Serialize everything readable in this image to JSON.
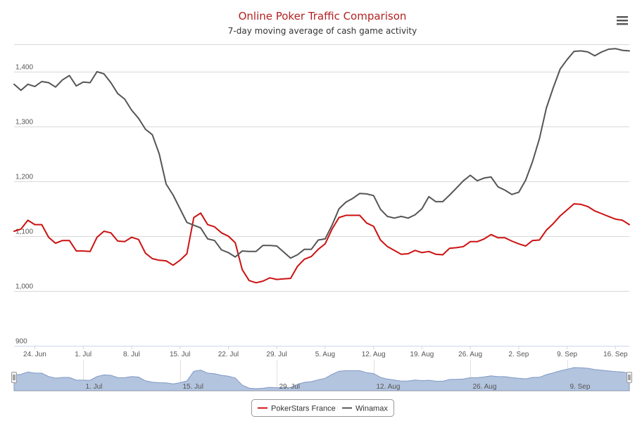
{
  "chart_data": {
    "type": "line",
    "title": "Online Poker Traffic Comparison",
    "subtitle": "7-day moving average of cash game activity",
    "xlabel": "",
    "ylabel": "",
    "ylim": [
      900,
      1450
    ],
    "y_ticks": [
      900,
      1000,
      1100,
      1200,
      1300,
      1400
    ],
    "y_tick_labels": [
      "900",
      "1,000",
      "1,100",
      "1,200",
      "1,300",
      "1,400"
    ],
    "x_start": "2018-06-21",
    "x_end": "2018-09-18",
    "x_ticks": [
      "2018-06-24",
      "2018-07-01",
      "2018-07-08",
      "2018-07-15",
      "2018-07-22",
      "2018-07-29",
      "2018-08-05",
      "2018-08-12",
      "2018-08-19",
      "2018-08-26",
      "2018-09-02",
      "2018-09-09",
      "2018-09-16"
    ],
    "x_tick_labels": [
      "24. Jun",
      "1. Jul",
      "8. Jul",
      "15. Jul",
      "22. Jul",
      "29. Jul",
      "5. Aug",
      "12. Aug",
      "19. Aug",
      "26. Aug",
      "2. Sep",
      "9. Sep",
      "16. Sep"
    ],
    "navigator_ticks": [
      "2018-07-01",
      "2018-07-15",
      "2018-07-29",
      "2018-08-12",
      "2018-08-26",
      "2018-09-09"
    ],
    "navigator_tick_labels": [
      "1. Jul",
      "15. Jul",
      "29. Jul",
      "12. Aug",
      "26. Aug",
      "9. Sep"
    ],
    "legend_position": "bottom-center",
    "grid": true,
    "series": [
      {
        "name": "PokerStars France",
        "color": "#cc1111",
        "x": [
          "2018-06-21",
          "2018-06-22",
          "2018-06-23",
          "2018-06-24",
          "2018-06-25",
          "2018-06-26",
          "2018-06-27",
          "2018-06-28",
          "2018-06-29",
          "2018-06-30",
          "2018-07-01",
          "2018-07-02",
          "2018-07-03",
          "2018-07-04",
          "2018-07-05",
          "2018-07-06",
          "2018-07-07",
          "2018-07-08",
          "2018-07-09",
          "2018-07-10",
          "2018-07-11",
          "2018-07-12",
          "2018-07-13",
          "2018-07-14",
          "2018-07-15",
          "2018-07-16",
          "2018-07-17",
          "2018-07-18",
          "2018-07-19",
          "2018-07-20",
          "2018-07-21",
          "2018-07-22",
          "2018-07-23",
          "2018-07-24",
          "2018-07-25",
          "2018-07-26",
          "2018-07-27",
          "2018-07-28",
          "2018-07-29",
          "2018-07-30",
          "2018-07-31",
          "2018-08-01",
          "2018-08-02",
          "2018-08-03",
          "2018-08-04",
          "2018-08-05",
          "2018-08-06",
          "2018-08-07",
          "2018-08-08",
          "2018-08-09",
          "2018-08-10",
          "2018-08-11",
          "2018-08-12",
          "2018-08-13",
          "2018-08-14",
          "2018-08-15",
          "2018-08-16",
          "2018-08-17",
          "2018-08-18",
          "2018-08-19",
          "2018-08-20",
          "2018-08-21",
          "2018-08-22",
          "2018-08-23",
          "2018-08-24",
          "2018-08-25",
          "2018-08-26",
          "2018-08-27",
          "2018-08-28",
          "2018-08-29",
          "2018-08-30",
          "2018-08-31",
          "2018-09-01",
          "2018-09-02",
          "2018-09-03",
          "2018-09-04",
          "2018-09-05",
          "2018-09-06",
          "2018-09-07",
          "2018-09-08",
          "2018-09-09",
          "2018-09-10",
          "2018-09-11",
          "2018-09-12",
          "2018-09-13",
          "2018-09-14",
          "2018-09-15",
          "2018-09-16",
          "2018-09-17",
          "2018-09-18"
        ],
        "values": [
          1109,
          1113,
          1129,
          1121,
          1121,
          1098,
          1087,
          1092,
          1092,
          1073,
          1073,
          1072,
          1098,
          1109,
          1106,
          1091,
          1090,
          1098,
          1094,
          1069,
          1059,
          1056,
          1055,
          1047,
          1056,
          1068,
          1134,
          1142,
          1121,
          1117,
          1106,
          1100,
          1088,
          1039,
          1019,
          1015,
          1018,
          1024,
          1021,
          1022,
          1023,
          1045,
          1058,
          1063,
          1076,
          1086,
          1113,
          1134,
          1138,
          1138,
          1138,
          1124,
          1118,
          1093,
          1081,
          1074,
          1067,
          1068,
          1074,
          1070,
          1072,
          1067,
          1066,
          1078,
          1079,
          1081,
          1090,
          1090,
          1095,
          1103,
          1097,
          1097,
          1091,
          1086,
          1082,
          1092,
          1093,
          1111,
          1123,
          1137,
          1148,
          1159,
          1158,
          1154,
          1146,
          1141,
          1136,
          1131,
          1129,
          1121
        ]
      },
      {
        "name": "Winamax",
        "color": "#555555",
        "x": [
          "2018-06-21",
          "2018-06-22",
          "2018-06-23",
          "2018-06-24",
          "2018-06-25",
          "2018-06-26",
          "2018-06-27",
          "2018-06-28",
          "2018-06-29",
          "2018-06-30",
          "2018-07-01",
          "2018-07-02",
          "2018-07-03",
          "2018-07-04",
          "2018-07-05",
          "2018-07-06",
          "2018-07-07",
          "2018-07-08",
          "2018-07-09",
          "2018-07-10",
          "2018-07-11",
          "2018-07-12",
          "2018-07-13",
          "2018-07-14",
          "2018-07-15",
          "2018-07-16",
          "2018-07-17",
          "2018-07-18",
          "2018-07-19",
          "2018-07-20",
          "2018-07-21",
          "2018-07-22",
          "2018-07-23",
          "2018-07-24",
          "2018-07-25",
          "2018-07-26",
          "2018-07-27",
          "2018-07-28",
          "2018-07-29",
          "2018-07-30",
          "2018-07-31",
          "2018-08-01",
          "2018-08-02",
          "2018-08-03",
          "2018-08-04",
          "2018-08-05",
          "2018-08-06",
          "2018-08-07",
          "2018-08-08",
          "2018-08-09",
          "2018-08-10",
          "2018-08-11",
          "2018-08-12",
          "2018-08-13",
          "2018-08-14",
          "2018-08-15",
          "2018-08-16",
          "2018-08-17",
          "2018-08-18",
          "2018-08-19",
          "2018-08-20",
          "2018-08-21",
          "2018-08-22",
          "2018-08-23",
          "2018-08-24",
          "2018-08-25",
          "2018-08-26",
          "2018-08-27",
          "2018-08-28",
          "2018-08-29",
          "2018-08-30",
          "2018-08-31",
          "2018-09-01",
          "2018-09-02",
          "2018-09-03",
          "2018-09-04",
          "2018-09-05",
          "2018-09-06",
          "2018-09-07",
          "2018-09-08",
          "2018-09-09",
          "2018-09-10",
          "2018-09-11",
          "2018-09-12",
          "2018-09-13",
          "2018-09-14",
          "2018-09-15",
          "2018-09-16",
          "2018-09-17",
          "2018-09-18"
        ],
        "values": [
          1377,
          1366,
          1377,
          1373,
          1382,
          1380,
          1372,
          1385,
          1393,
          1374,
          1381,
          1380,
          1400,
          1396,
          1380,
          1360,
          1350,
          1330,
          1315,
          1295,
          1285,
          1250,
          1195,
          1175,
          1150,
          1125,
          1120,
          1115,
          1095,
          1092,
          1075,
          1070,
          1062,
          1073,
          1072,
          1072,
          1083,
          1083,
          1082,
          1071,
          1060,
          1066,
          1076,
          1076,
          1093,
          1095,
          1120,
          1150,
          1162,
          1169,
          1178,
          1177,
          1174,
          1149,
          1136,
          1133,
          1136,
          1133,
          1139,
          1150,
          1172,
          1163,
          1163,
          1175,
          1188,
          1201,
          1211,
          1201,
          1206,
          1208,
          1190,
          1184,
          1176,
          1180,
          1202,
          1236,
          1278,
          1334,
          1371,
          1405,
          1422,
          1437,
          1438,
          1436,
          1429,
          1436,
          1441,
          1442,
          1439,
          1438
        ]
      }
    ]
  }
}
